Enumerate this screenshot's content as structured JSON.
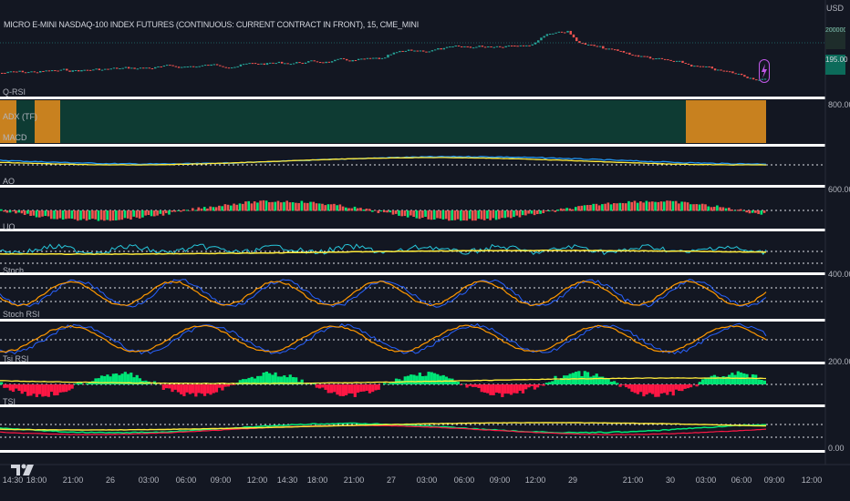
{
  "header": {
    "symbol_title": "MICRO E-MINI NASDAQ-100 INDEX FUTURES (CONTINUOUS: CURRENT CONTRACT IN FRONT), 15, CME_MINI",
    "currency": "USD"
  },
  "price_scale": {
    "last_price_label": "195.00",
    "secondary_label": "2000000"
  },
  "panes": {
    "rsi": "Q-RSI",
    "adx": "ADX (TF)",
    "macd": "MACD",
    "ao": "AO",
    "uo": "UO",
    "stoch": "Stoch",
    "stoch_rsi": "Stoch RSI",
    "tsi_rsi": "Tsi RSI",
    "tsi": "TSI"
  },
  "y_axis_labels": [
    "800.00",
    "600.00",
    "400.00",
    "200.00",
    "0.00"
  ],
  "x_axis_labels": [
    "14:30",
    "18:00",
    "21:00",
    "26",
    "03:00",
    "06:00",
    "09:00",
    "12:00",
    "14:30",
    "18:00",
    "21:00",
    "27",
    "03:00",
    "06:00",
    "09:00",
    "12:00",
    "29",
    "21:00",
    "30",
    "03:00",
    "06:00",
    "09:00",
    "12:00"
  ],
  "colors": {
    "background": "#131722",
    "up": "#26a69a",
    "down": "#ef5350",
    "adx_bg": "#0e3b33",
    "adx_hi": "#c8811f",
    "macd": "#2196f3",
    "signal": "#ffeb3b",
    "accent": "#c158e8"
  },
  "icons": {
    "logo": "tradingview-logo-icon",
    "event": "lightning-icon"
  }
}
